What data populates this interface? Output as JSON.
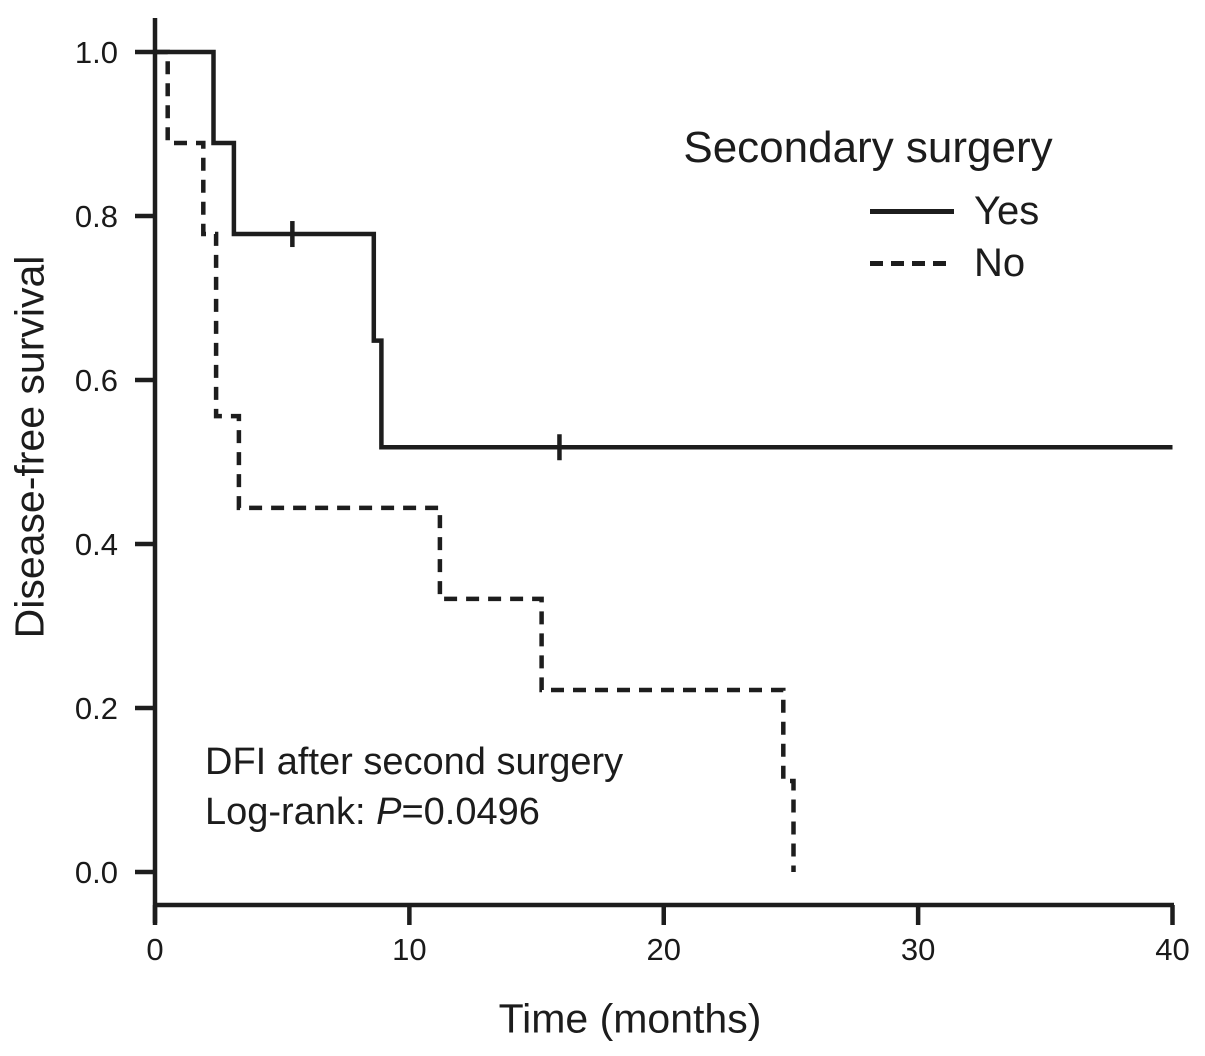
{
  "figure": {
    "background_color": "#ffffff",
    "line_color": "#1d1d1d",
    "text_color": "#1a1a1a"
  },
  "chart_data": {
    "type": "line",
    "chart_kind": "kaplan-meier-survival-step",
    "title": "",
    "xlabel": "Time (months)",
    "ylabel": "Disease-free survival",
    "xlim": [
      0,
      40
    ],
    "ylim": [
      0.0,
      1.0
    ],
    "grid": "off",
    "x_ticks": [
      {
        "v": 0,
        "label": "0"
      },
      {
        "v": 10,
        "label": "10"
      },
      {
        "v": 20,
        "label": "20"
      },
      {
        "v": 30,
        "label": "30"
      },
      {
        "v": 40,
        "label": "40"
      }
    ],
    "y_ticks": [
      {
        "v": 1.0,
        "label": "1.0"
      },
      {
        "v": 0.8,
        "label": "0.8"
      },
      {
        "v": 0.6,
        "label": "0.6"
      },
      {
        "v": 0.4,
        "label": "0.4"
      },
      {
        "v": 0.2,
        "label": "0.2"
      },
      {
        "v": 0.0,
        "label": "0.0"
      }
    ],
    "legend": {
      "title": "Secondary surgery",
      "position": "top-right",
      "entries": [
        {
          "label": "Yes",
          "line_style": "solid"
        },
        {
          "label": "No",
          "line_style": "dashed"
        }
      ]
    },
    "annotation": {
      "line1": "DFI after second surgery",
      "line2_prefix": "Log-rank: ",
      "line2_italic": "P",
      "line2_value": "=0.0496"
    },
    "series": [
      {
        "name": "Yes",
        "line_style": "solid",
        "points": [
          [
            0,
            1.0
          ],
          [
            2.3,
            1.0
          ],
          [
            2.3,
            0.889
          ],
          [
            3.1,
            0.889
          ],
          [
            3.1,
            0.778
          ],
          [
            8.6,
            0.778
          ],
          [
            8.6,
            0.648
          ],
          [
            8.9,
            0.648
          ],
          [
            8.9,
            0.518
          ],
          [
            40,
            0.518
          ]
        ],
        "censor_marks": [
          [
            5.4,
            0.778
          ],
          [
            15.9,
            0.518
          ]
        ]
      },
      {
        "name": "No",
        "line_style": "dashed",
        "points": [
          [
            0,
            1.0
          ],
          [
            0.5,
            1.0
          ],
          [
            0.5,
            0.889
          ],
          [
            1.9,
            0.889
          ],
          [
            1.9,
            0.778
          ],
          [
            2.4,
            0.778
          ],
          [
            2.4,
            0.556
          ],
          [
            3.3,
            0.556
          ],
          [
            3.3,
            0.444
          ],
          [
            11.2,
            0.444
          ],
          [
            11.2,
            0.333
          ],
          [
            15.2,
            0.333
          ],
          [
            15.2,
            0.222
          ],
          [
            24.7,
            0.222
          ],
          [
            24.7,
            0.111
          ],
          [
            25.1,
            0.111
          ],
          [
            25.1,
            0.0
          ]
        ],
        "censor_marks": []
      }
    ]
  }
}
